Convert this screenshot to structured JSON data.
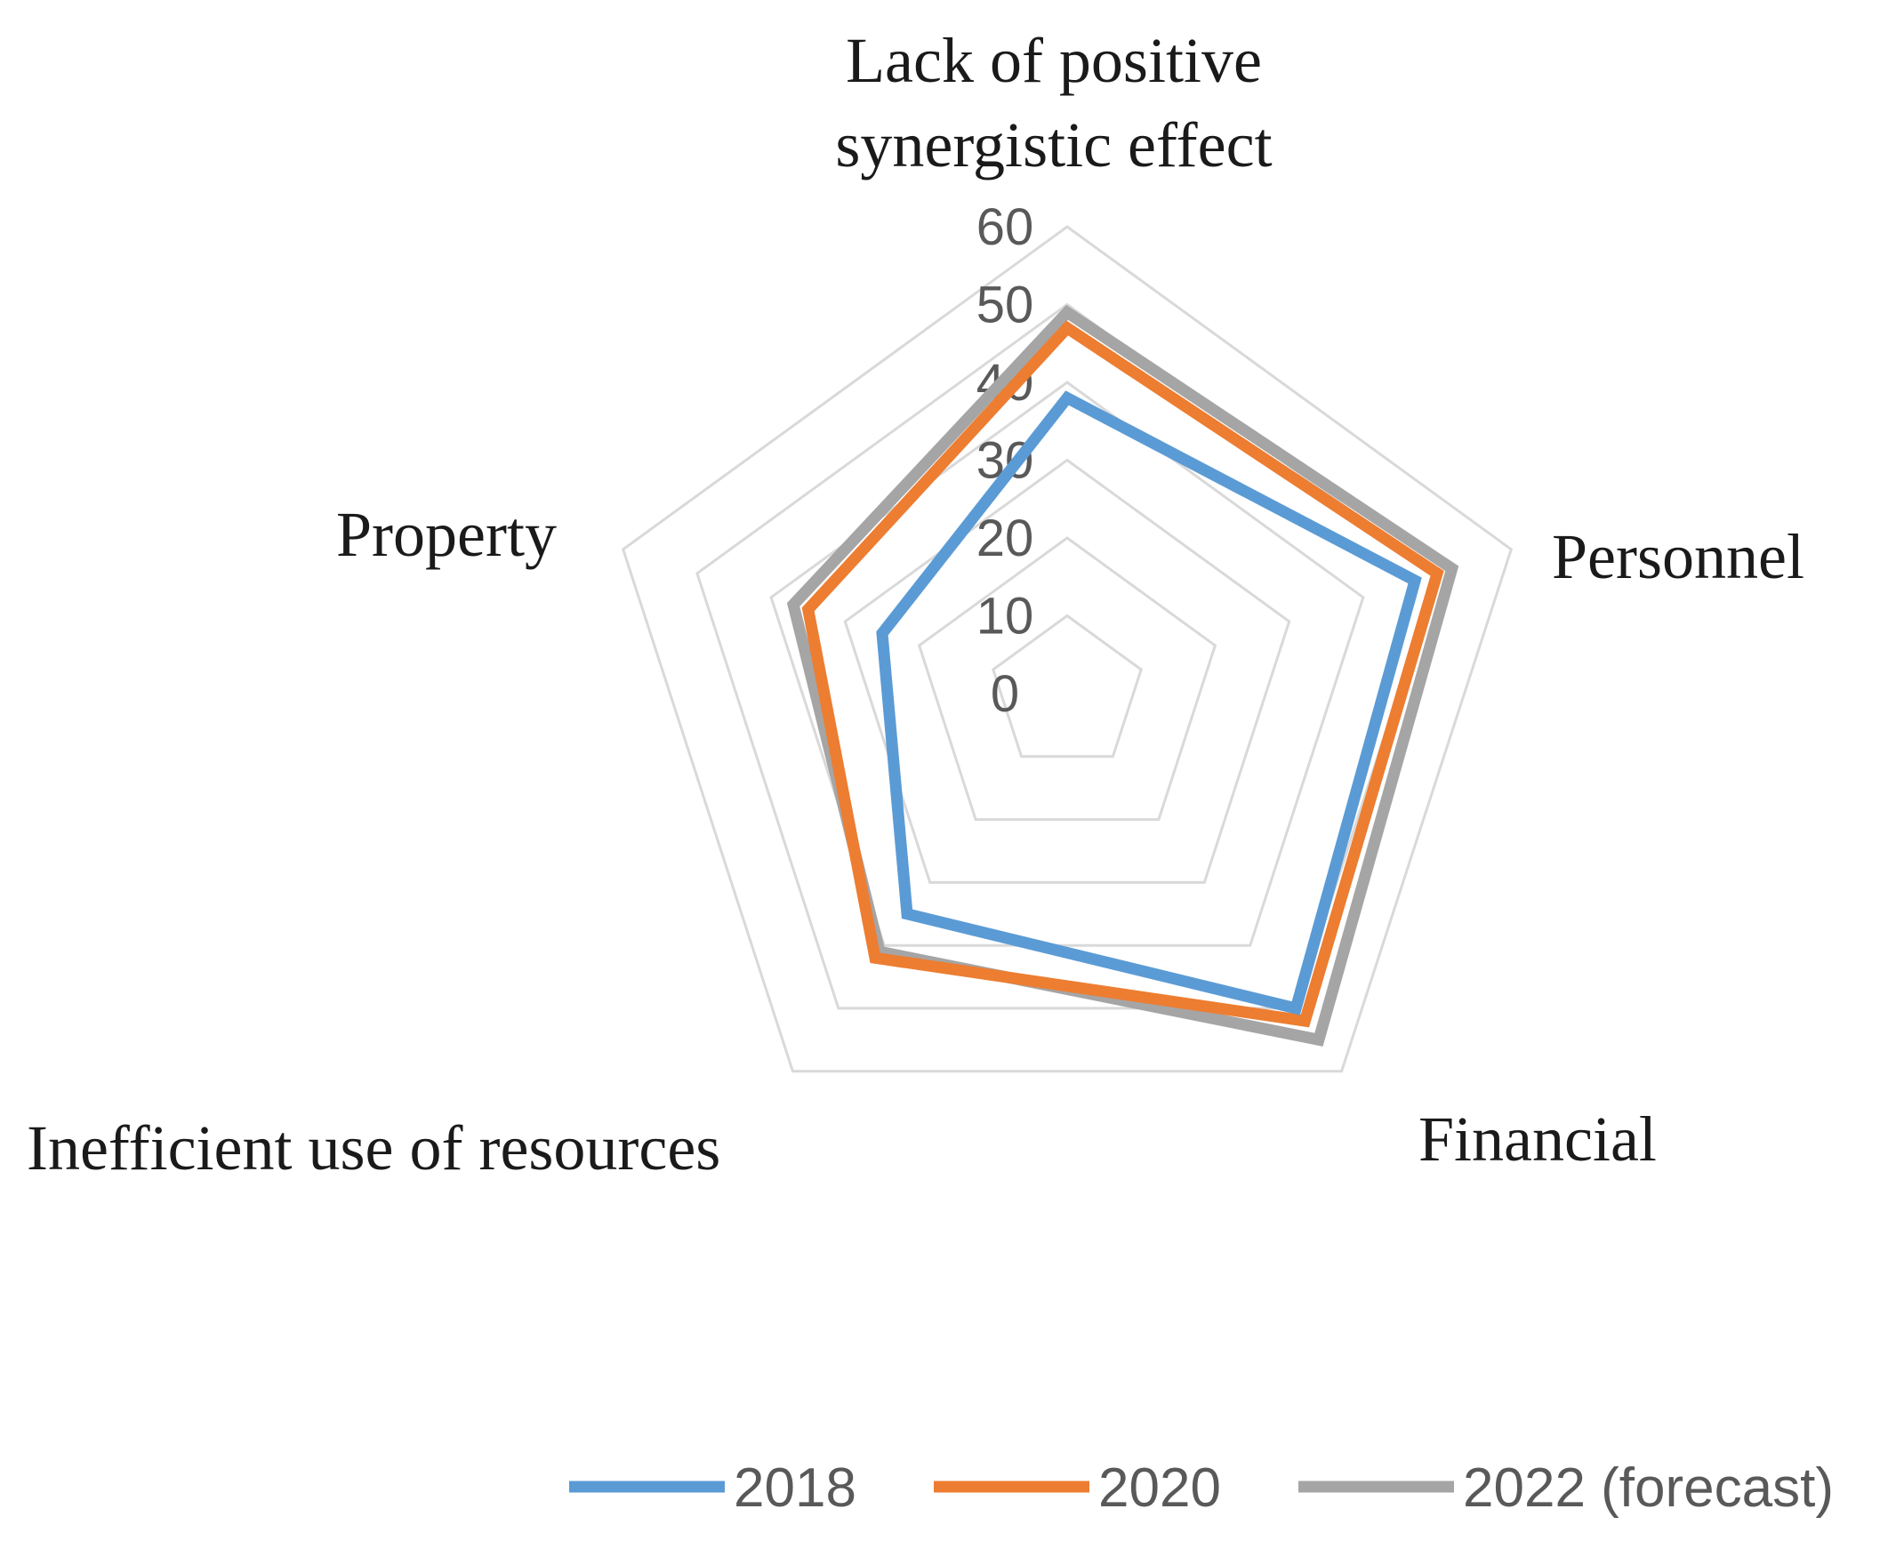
{
  "chart_data": {
    "type": "radar",
    "title": "",
    "axes": [
      [
        "Lack of positive",
        "synergistic effect"
      ],
      [
        "Personnel"
      ],
      [
        "Financial"
      ],
      [
        "Inefficient use of resources"
      ],
      [
        "Property"
      ]
    ],
    "categories": [
      "Lack of positive synergistic effect",
      "Personnel",
      "Financial",
      "Inefficient use of resources",
      "Property"
    ],
    "rlim": [
      0,
      60
    ],
    "ticks": [
      0,
      10,
      20,
      30,
      40,
      50,
      60
    ],
    "tick_labels": [
      "0",
      "10",
      "20",
      "30",
      "40",
      "50",
      "60"
    ],
    "series": [
      {
        "name": "2018",
        "color": "#5B9BD5",
        "values": [
          38,
          47,
          50,
          35,
          25
        ]
      },
      {
        "name": "2020",
        "color": "#ED7D31",
        "values": [
          47,
          50,
          52,
          42,
          35
        ]
      },
      {
        "name": "2022 (forecast)",
        "color": "#A5A5A5",
        "values": [
          49,
          52,
          55,
          41,
          37
        ]
      }
    ],
    "legend": [
      "2018",
      "2020",
      "2022 (forecast)"
    ],
    "legend_position": "bottom"
  }
}
